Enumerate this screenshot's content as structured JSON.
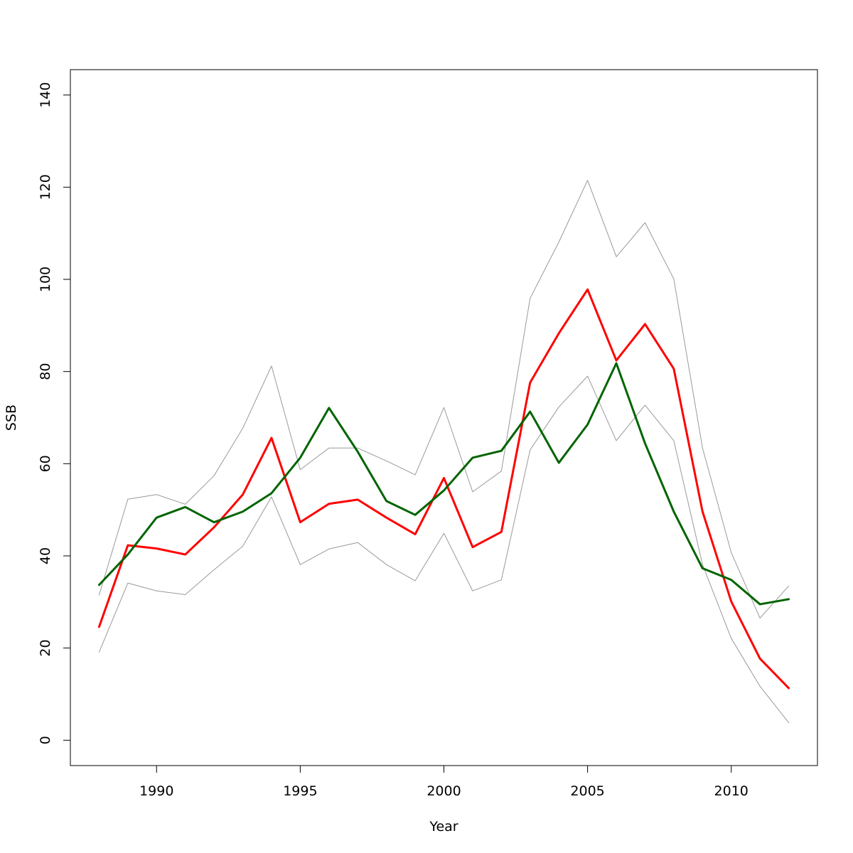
{
  "chart_data": {
    "type": "line",
    "xlabel": "Year",
    "ylabel": "SSB",
    "xlim": [
      1987,
      2013
    ],
    "ylim": [
      -5.5,
      145.5
    ],
    "x_ticks": [
      1990,
      1995,
      2000,
      2005,
      2010
    ],
    "y_ticks": [
      0,
      20,
      40,
      60,
      80,
      100,
      120,
      140
    ],
    "grid": false,
    "x": [
      1988,
      1989,
      1990,
      1991,
      1992,
      1993,
      1994,
      1995,
      1996,
      1997,
      1998,
      1999,
      2000,
      2001,
      2002,
      2003,
      2004,
      2005,
      2006,
      2007,
      2008,
      2009,
      2010,
      2011,
      2012
    ],
    "series": [
      {
        "color": "#999999",
        "width": 1,
        "values": [
          31.5,
          52.3,
          53.3,
          51.2,
          57.4,
          67.7,
          81.2,
          58.7,
          63.4,
          63.4,
          60.6,
          57.6,
          72.2,
          53.9,
          58.4,
          95.9,
          108.1,
          121.5,
          104.9,
          112.3,
          100.1,
          63.4,
          40.7,
          26.5,
          33.5
        ]
      },
      {
        "color": "#999999",
        "width": 1,
        "values": [
          19.1,
          34.1,
          32.4,
          31.6,
          37.0,
          42.1,
          52.8,
          38.1,
          41.5,
          42.9,
          38.1,
          34.6,
          44.9,
          32.4,
          34.8,
          63.0,
          72.3,
          79.0,
          65.0,
          72.7,
          65.0,
          38.1,
          22.1,
          11.7,
          3.8
        ]
      },
      {
        "color": "#ff0000",
        "width": 3,
        "values": [
          24.6,
          42.3,
          41.6,
          40.3,
          46.2,
          53.3,
          65.6,
          47.3,
          51.3,
          52.2,
          48.3,
          44.7,
          56.9,
          41.9,
          45.2,
          77.6,
          88.3,
          97.8,
          82.4,
          90.3,
          80.6,
          49.6,
          30.1,
          17.7,
          11.3
        ]
      },
      {
        "color": "#006400",
        "width": 3,
        "values": [
          33.7,
          40.3,
          48.3,
          50.6,
          47.3,
          49.6,
          53.6,
          61.3,
          72.1,
          62.6,
          51.9,
          48.9,
          54.2,
          61.3,
          62.8,
          71.3,
          60.2,
          68.5,
          81.8,
          64.4,
          49.6,
          37.3,
          34.8,
          29.5,
          30.6
        ]
      }
    ]
  }
}
